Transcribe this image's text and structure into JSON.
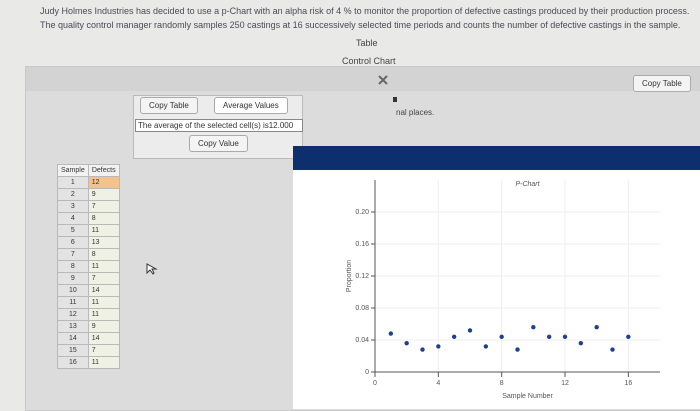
{
  "problem": {
    "lines": [
      "Judy Holmes Industries has decided to use a p-Chart with an alpha risk of 4 % to monitor the proportion of defective castings produced by their production process.",
      "The quality control manager randomly samples 250 castings at 16 successively selected time periods and counts the number of defective castings in the sample."
    ]
  },
  "links": [
    "Table",
    "Control Chart"
  ],
  "dialog": {
    "copy_table": "Copy Table",
    "partial_text": "nal places.",
    "popup": {
      "copy_table": "Copy Table",
      "average_values": "Average Values",
      "result": "The average of the selected cell(s) is12.000",
      "copy_value": "Copy Value"
    }
  },
  "table": {
    "headers": [
      "Sample",
      "Defects"
    ],
    "rows": [
      [
        1,
        12
      ],
      [
        2,
        9
      ],
      [
        3,
        7
      ],
      [
        4,
        8
      ],
      [
        5,
        11
      ],
      [
        6,
        13
      ],
      [
        7,
        8
      ],
      [
        8,
        11
      ],
      [
        9,
        7
      ],
      [
        10,
        14
      ],
      [
        11,
        11
      ],
      [
        12,
        11
      ],
      [
        13,
        9
      ],
      [
        14,
        14
      ],
      [
        15,
        7
      ],
      [
        16,
        11
      ]
    ]
  },
  "chart_data": {
    "type": "scatter",
    "title": "P-Chart",
    "x_label": "Sample Number",
    "y_label": "Proportion",
    "x": [
      1,
      2,
      3,
      4,
      5,
      6,
      7,
      8,
      9,
      10,
      11,
      12,
      13,
      14,
      15,
      16
    ],
    "values": [
      0.048,
      0.036,
      0.028,
      0.032,
      0.044,
      0.052,
      0.032,
      0.044,
      0.028,
      0.056,
      0.044,
      0.044,
      0.036,
      0.056,
      0.028,
      0.044
    ],
    "color": "#1f3f8f",
    "xlim": [
      0,
      18
    ],
    "xticks": [
      0,
      4,
      8,
      12,
      16
    ],
    "ylim": [
      0,
      0.24
    ],
    "yticks": [
      0,
      0.04,
      0.08,
      0.12,
      0.16,
      {
        "value": 0.2,
        "label": "0.20"
      }
    ],
    "grid": true
  }
}
